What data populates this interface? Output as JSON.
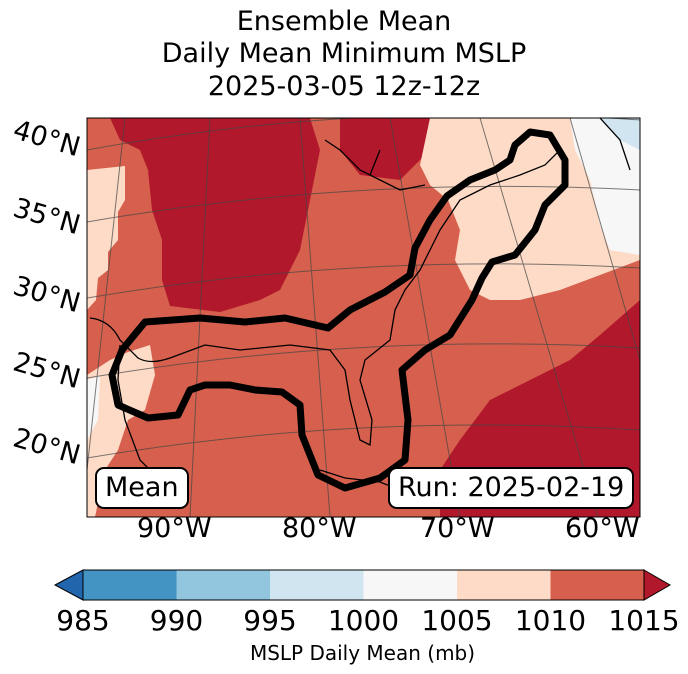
{
  "title": {
    "line1": "Ensemble Mean",
    "line2": "Daily Mean Minimum MSLP",
    "line3": "2025-03-05 12z-12z"
  },
  "map": {
    "lat_labels": [
      "40°N",
      "35°N",
      "30°N",
      "25°N",
      "20°N"
    ],
    "lon_labels": [
      "90°W",
      "80°W",
      "70°W",
      "60°W"
    ],
    "left_box": "Mean",
    "right_box": "Run: 2025-02-19",
    "colors": {
      "c1010_1015": "#b2182b",
      "c1005_1010": "#d6604d",
      "c1000_1005": "#fddbc7",
      "c995_1000": "#f7f7f7",
      "c990_995": "#d1e5f0",
      "ocean_gray": "#f2f2f2"
    }
  },
  "colorbar": {
    "ticks": [
      "985",
      "990",
      "995",
      "1000",
      "1005",
      "1010",
      "1015"
    ],
    "label": "MSLP Daily Mean (mb)",
    "colors": [
      "#2166ac",
      "#4393c3",
      "#92c5de",
      "#d1e5f0",
      "#f7f7f7",
      "#fddbc7",
      "#d6604d",
      "#b2182b"
    ]
  }
}
